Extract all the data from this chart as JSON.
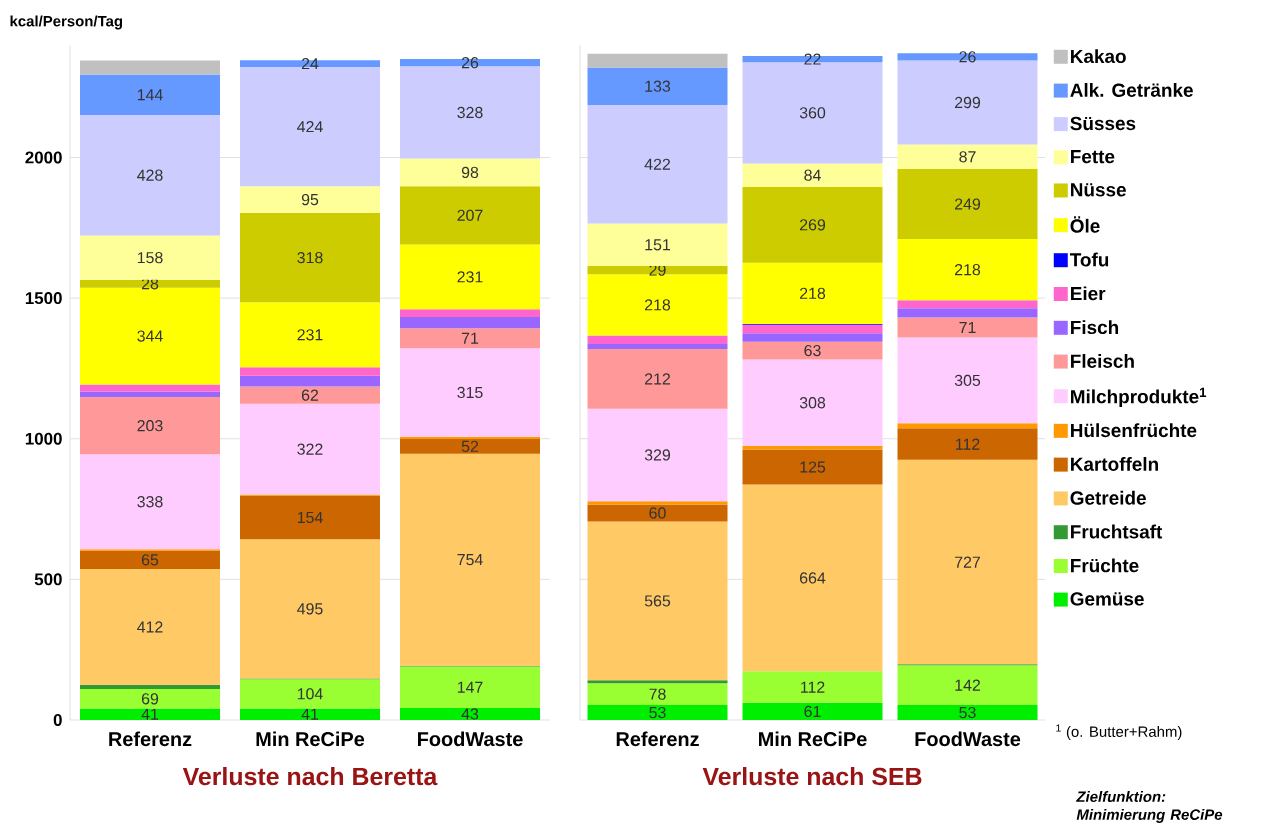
{
  "chart_data": [
    {
      "type": "bar",
      "stacked": true,
      "xlabel": "Verluste nach Beretta",
      "ylabel": "kcal/Person/Tag",
      "categories": [
        "Referenz",
        "Min ReCiPe",
        "FoodWaste"
      ],
      "ylim": [
        0,
        2400
      ],
      "yticks": [
        0,
        500,
        1000,
        1500,
        2000
      ],
      "grid": "y",
      "series": [
        {
          "color": "#00ee00",
          "values": [
            41,
            41,
            43
          ],
          "value_labels": [
            "41",
            "41",
            "43"
          ]
        },
        {
          "color": "#99ff33",
          "values": [
            69,
            104,
            147
          ],
          "value_labels": [
            "69",
            "104",
            "147"
          ]
        },
        {
          "color": "#339933",
          "values": [
            15,
            3,
            3
          ],
          "value_labels": [
            null,
            null,
            null
          ]
        },
        {
          "color": "#ffc966",
          "values": [
            412,
            495,
            754
          ],
          "value_labels": [
            "412",
            "495",
            "754"
          ]
        },
        {
          "color": "#cc6600",
          "values": [
            65,
            154,
            52
          ],
          "value_labels": [
            "65",
            "154",
            "52"
          ]
        },
        {
          "color": "#ff9900",
          "values": [
            5,
            5,
            8
          ],
          "value_labels": [
            null,
            null,
            null
          ]
        },
        {
          "color": "#ffccff",
          "values": [
            338,
            322,
            315
          ],
          "value_labels": [
            "338",
            "322",
            "315"
          ]
        },
        {
          "color": "#ff9999",
          "values": [
            203,
            62,
            71
          ],
          "value_labels": [
            "203",
            "62",
            "71"
          ]
        },
        {
          "color": "#9966ff",
          "values": [
            20,
            38,
            40
          ],
          "value_labels": [
            null,
            null,
            null
          ]
        },
        {
          "color": "#0000ff",
          "values": [
            null,
            null,
            null
          ],
          "value_labels": [
            null,
            null,
            null
          ]
        },
        {
          "color": "#ff66cc",
          "values": [
            25,
            30,
            27
          ],
          "value_labels": [
            null,
            null,
            null
          ]
        },
        {
          "color": "#ffff00",
          "values": [
            344,
            231,
            231
          ],
          "value_labels": [
            "344",
            "231",
            "231"
          ]
        },
        {
          "color": "#cccc00",
          "values": [
            28,
            318,
            207
          ],
          "value_labels": [
            "28",
            "318",
            "207"
          ]
        },
        {
          "color": "#ffff99",
          "values": [
            158,
            95,
            98
          ],
          "value_labels": [
            "158",
            "95",
            "98"
          ]
        },
        {
          "color": "#ccccff",
          "values": [
            428,
            424,
            328
          ],
          "value_labels": [
            "428",
            "424",
            "328"
          ]
        },
        {
          "color": "#6699ff",
          "values": [
            144,
            24,
            26
          ],
          "value_labels": [
            "144",
            "24",
            "26"
          ]
        },
        {
          "color": "#c0c0c0",
          "values": [
            50,
            null,
            null
          ],
          "value_labels": [
            null,
            null,
            null
          ]
        }
      ]
    },
    {
      "type": "bar",
      "stacked": true,
      "xlabel": "Verluste nach SEB",
      "categories": [
        "Referenz",
        "Min ReCiPe",
        "FoodWaste"
      ],
      "ylim": [
        0,
        2400
      ],
      "yticks": [
        0,
        500,
        1000,
        1500,
        2000
      ],
      "grid": "y",
      "tick_labels": "x",
      "legend": "right",
      "annotations": [
        "$^{1}$ (o. Butter+Rahm)",
        "Zielfunktion: Minimierung ReCiPe"
      ],
      "series": [
        {
          "name": "Gemüse",
          "color": "#00ee00",
          "values": [
            53,
            61,
            53
          ],
          "value_labels": [
            "53",
            "61",
            "53"
          ]
        },
        {
          "name": "Früchte",
          "color": "#99ff33",
          "values": [
            78,
            112,
            142
          ],
          "value_labels": [
            "78",
            "112",
            "142"
          ]
        },
        {
          "name": "Fruchtsaft",
          "color": "#339933",
          "values": [
            10,
            null,
            3
          ],
          "value_labels": [
            null,
            null,
            null
          ]
        },
        {
          "name": "Getreide",
          "color": "#ffc966",
          "values": [
            565,
            664,
            727
          ],
          "value_labels": [
            "565",
            "664",
            "727"
          ]
        },
        {
          "name": "Kartoffeln",
          "color": "#cc6600",
          "values": [
            60,
            125,
            112
          ],
          "value_labels": [
            "60",
            "125",
            "112"
          ]
        },
        {
          "name": "Hülsenfrüchte",
          "color": "#ff9900",
          "values": [
            12,
            12,
            18
          ],
          "value_labels": [
            null,
            null,
            null
          ]
        },
        {
          "name": "Milchprodukte$^{1}$",
          "color": "#ffccff",
          "values": [
            329,
            308,
            305
          ],
          "value_labels": [
            "329",
            "308",
            "305"
          ]
        },
        {
          "name": "Fleisch",
          "color": "#ff9999",
          "values": [
            212,
            63,
            71
          ],
          "value_labels": [
            "212",
            "63",
            "71"
          ]
        },
        {
          "name": "Fisch",
          "color": "#9966ff",
          "values": [
            18,
            30,
            33
          ],
          "value_labels": [
            null,
            null,
            null
          ]
        },
        {
          "name": "Eier",
          "color": "#ff66cc",
          "values": [
            30,
            30,
            28
          ],
          "value_labels": [
            null,
            null,
            null
          ]
        },
        {
          "name": "Tofu",
          "color": "#0000ff",
          "values": [
            null,
            3,
            null
          ],
          "value_labels": [
            null,
            null,
            null
          ]
        },
        {
          "name": "Öle",
          "color": "#ffff00",
          "values": [
            218,
            218,
            218
          ],
          "value_labels": [
            "218",
            "218",
            "218"
          ]
        },
        {
          "name": "Nüsse",
          "color": "#cccc00",
          "values": [
            29,
            269,
            249
          ],
          "value_labels": [
            "29",
            "269",
            "249"
          ]
        },
        {
          "name": "Fette",
          "color": "#ffff99",
          "values": [
            151,
            84,
            87
          ],
          "value_labels": [
            "151",
            "84",
            "87"
          ]
        },
        {
          "name": "Süsses",
          "color": "#ccccff",
          "values": [
            422,
            360,
            299
          ],
          "value_labels": [
            "422",
            "360",
            "299"
          ]
        },
        {
          "name": "Alk. Getränke",
          "color": "#6699ff",
          "values": [
            133,
            22,
            26
          ],
          "value_labels": [
            "133",
            "22",
            "26"
          ]
        },
        {
          "name": "Kakao",
          "color": "#c0c0c0",
          "values": [
            49,
            null,
            null
          ],
          "value_labels": [
            null,
            null,
            null
          ]
        }
      ]
    }
  ]
}
